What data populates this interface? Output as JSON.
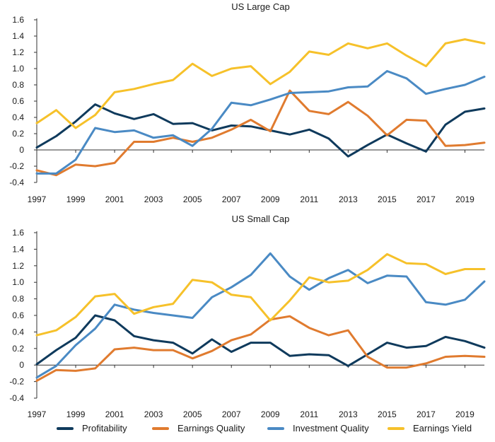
{
  "chart_data": [
    {
      "type": "line",
      "title": "US Large Cap",
      "x": [
        1997,
        1998,
        1999,
        2000,
        2001,
        2002,
        2003,
        2004,
        2005,
        2006,
        2007,
        2008,
        2009,
        2010,
        2011,
        2012,
        2013,
        2014,
        2015,
        2016,
        2017,
        2018,
        2019,
        2020
      ],
      "x_ticks": [
        "1997",
        "1999",
        "2001",
        "2003",
        "2005",
        "2007",
        "2009",
        "2011",
        "2013",
        "2015",
        "2017",
        "2019"
      ],
      "y_ticks": [
        "1.6",
        "1.4",
        "1.2",
        "1.0",
        "0.8",
        "0.6",
        "0.4",
        "0.2",
        "0",
        "-0.2",
        "-0.4"
      ],
      "ylim": [
        -0.4,
        1.6
      ],
      "grid": false,
      "series": [
        {
          "name": "Profitability",
          "values": [
            0.03,
            0.17,
            0.35,
            0.56,
            0.45,
            0.38,
            0.44,
            0.32,
            0.33,
            0.24,
            0.3,
            0.29,
            0.24,
            0.19,
            0.25,
            0.14,
            -0.08,
            0.06,
            0.19,
            0.08,
            -0.02,
            0.31,
            0.47,
            0.51
          ]
        },
        {
          "name": "Earnings Quality",
          "values": [
            -0.25,
            -0.31,
            -0.18,
            -0.2,
            -0.16,
            0.1,
            0.1,
            0.15,
            0.1,
            0.15,
            0.25,
            0.37,
            0.23,
            0.73,
            0.48,
            0.44,
            0.59,
            0.42,
            0.18,
            0.37,
            0.36,
            0.05,
            0.06,
            0.09
          ]
        },
        {
          "name": "Investment Quality",
          "values": [
            -0.29,
            -0.29,
            -0.12,
            0.27,
            0.22,
            0.24,
            0.15,
            0.18,
            0.05,
            0.26,
            0.58,
            0.55,
            0.62,
            0.7,
            0.71,
            0.72,
            0.77,
            0.78,
            0.97,
            0.88,
            0.69,
            0.75,
            0.8,
            0.9
          ]
        },
        {
          "name": "Earnings Yield",
          "values": [
            0.33,
            0.49,
            0.27,
            0.43,
            0.71,
            0.75,
            0.81,
            0.86,
            1.06,
            0.91,
            1.0,
            1.03,
            0.81,
            0.96,
            1.21,
            1.17,
            1.31,
            1.25,
            1.31,
            1.16,
            1.03,
            1.31,
            1.36,
            1.31
          ]
        }
      ]
    },
    {
      "type": "line",
      "title": "US Small Cap",
      "x": [
        1997,
        1998,
        1999,
        2000,
        2001,
        2002,
        2003,
        2004,
        2005,
        2006,
        2007,
        2008,
        2009,
        2010,
        2011,
        2012,
        2013,
        2014,
        2015,
        2016,
        2017,
        2018,
        2019,
        2020
      ],
      "x_ticks": [
        "1997",
        "1999",
        "2001",
        "2003",
        "2005",
        "2007",
        "2009",
        "2011",
        "2013",
        "2015",
        "2017",
        "2019"
      ],
      "y_ticks": [
        "1.6",
        "1.4",
        "1.2",
        "1.0",
        "0.8",
        "0.6",
        "0.4",
        "0.2",
        "0",
        "-0.2",
        "-0.4"
      ],
      "ylim": [
        -0.4,
        1.6
      ],
      "grid": false,
      "series": [
        {
          "name": "Profitability",
          "values": [
            0.01,
            0.18,
            0.33,
            0.6,
            0.54,
            0.35,
            0.3,
            0.27,
            0.14,
            0.31,
            0.16,
            0.27,
            0.27,
            0.11,
            0.13,
            0.12,
            -0.01,
            0.13,
            0.27,
            0.21,
            0.23,
            0.34,
            0.29,
            0.21
          ]
        },
        {
          "name": "Earnings Quality",
          "values": [
            -0.19,
            -0.06,
            -0.07,
            -0.04,
            0.19,
            0.21,
            0.18,
            0.18,
            0.08,
            0.17,
            0.3,
            0.37,
            0.55,
            0.59,
            0.45,
            0.36,
            0.42,
            0.1,
            -0.03,
            -0.03,
            0.02,
            0.1,
            0.11,
            0.1
          ]
        },
        {
          "name": "Investment Quality",
          "values": [
            -0.15,
            -0.01,
            0.24,
            0.44,
            0.73,
            0.67,
            0.63,
            0.6,
            0.57,
            0.82,
            0.94,
            1.09,
            1.35,
            1.07,
            0.91,
            1.05,
            1.15,
            0.99,
            1.08,
            1.07,
            0.76,
            0.73,
            0.79,
            1.01
          ]
        },
        {
          "name": "Earnings Yield",
          "values": [
            0.36,
            0.42,
            0.58,
            0.83,
            0.86,
            0.62,
            0.7,
            0.74,
            1.03,
            1.0,
            0.85,
            0.82,
            0.54,
            0.78,
            1.06,
            1.0,
            1.02,
            1.15,
            1.34,
            1.23,
            1.22,
            1.1,
            1.16,
            1.16
          ]
        }
      ]
    }
  ],
  "legend": [
    {
      "label": "Profitability",
      "color": "#0f3a5c"
    },
    {
      "label": "Earnings Quality",
      "color": "#e07b2f"
    },
    {
      "label": "Investment Quality",
      "color": "#4a8ac4"
    },
    {
      "label": "Earnings Yield",
      "color": "#f6c12a"
    }
  ]
}
